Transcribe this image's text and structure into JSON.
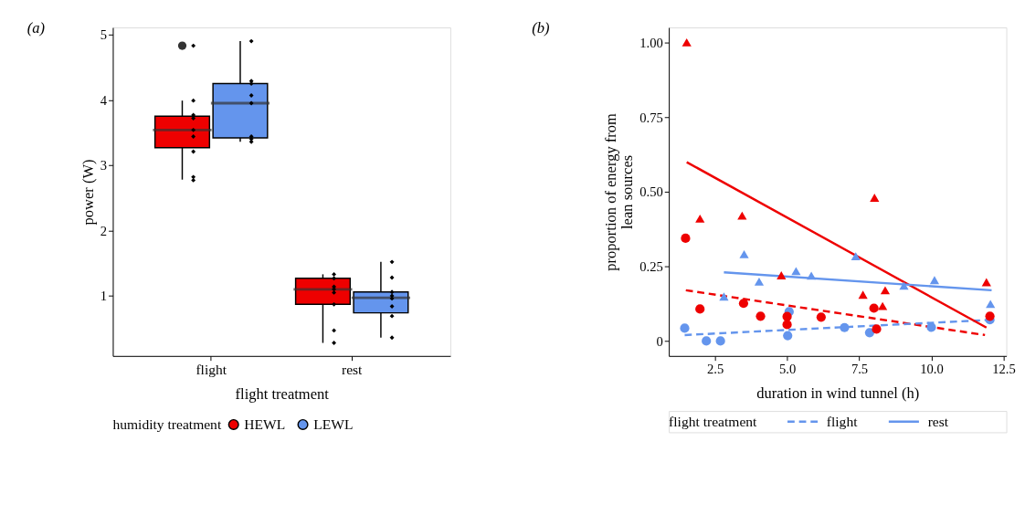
{
  "chart_data": [
    {
      "type": "box",
      "title": "(a)",
      "xlabel": "flight treatment",
      "ylabel": "power (W)",
      "categories": [
        "flight",
        "rest"
      ],
      "ylim": [
        0.08,
        5.11
      ],
      "yticks": [
        1,
        2,
        3,
        4,
        5
      ],
      "legend": "bottom",
      "legend_title": "humidity treatment",
      "grid": false,
      "series": [
        {
          "name": "HEWL",
          "color": "#ee0000",
          "boxes": [
            {
              "low": 2.78,
              "q1": 3.27,
              "median": 3.54,
              "q3": 3.75,
              "high": 3.99,
              "outliers": [
                4.83
              ]
            },
            {
              "low": 0.28,
              "q1": 0.87,
              "median": 1.1,
              "q3": 1.27,
              "high": 1.33
            }
          ]
        },
        {
          "name": "LEWL",
          "color": "#6495ed",
          "boxes": [
            {
              "low": 3.36,
              "q1": 3.42,
              "median": 3.95,
              "q3": 4.25,
              "high": 4.9
            },
            {
              "low": 0.36,
              "q1": 0.74,
              "median": 0.97,
              "q3": 1.06,
              "high": 1.52
            }
          ]
        },
        {
          "type": "scatter",
          "color": "#000000",
          "marker": "diamond",
          "x": [
            "flight",
            "flight",
            "flight",
            "flight",
            "flight",
            "flight",
            "flight",
            "flight",
            "flight",
            "rest",
            "rest",
            "rest",
            "rest",
            "rest",
            "rest",
            "rest",
            "rest"
          ],
          "values": [
            4.83,
            3.99,
            3.77,
            3.72,
            3.54,
            3.44,
            3.21,
            2.82,
            2.77,
            1.33,
            1.27,
            1.14,
            1.1,
            1.05,
            0.87,
            0.47,
            0.28
          ]
        },
        {
          "type": "scatter",
          "color": "#000000",
          "marker": "diamond",
          "x": [
            "flight",
            "flight",
            "flight",
            "flight",
            "flight",
            "flight",
            "flight",
            "flight",
            "rest",
            "rest",
            "rest",
            "rest",
            "rest",
            "rest",
            "rest",
            "rest"
          ],
          "values": [
            4.9,
            4.29,
            4.25,
            4.07,
            3.95,
            3.44,
            3.4,
            3.36,
            1.52,
            1.28,
            1.06,
            1.0,
            0.96,
            0.84,
            0.69,
            0.36
          ]
        }
      ]
    },
    {
      "type": "scatter",
      "title": "(b)",
      "xlabel": "duration in wind tunnel (h)",
      "ylabel": "proportion of energy from lean sources",
      "xlim": [
        0.9,
        12.6
      ],
      "xticks": [
        2.5,
        {
          "value": 5,
          "label": "5.0"
        },
        {
          "value": 7.5,
          "label": "7.5"
        },
        {
          "value": 10,
          "label": "10.0"
        },
        12.5
      ],
      "ylim": [
        -0.05,
        1.05
      ],
      "yticks": [
        0,
        0.25,
        {
          "value": 0.5,
          "label": "0.50"
        },
        {
          "value": 0.75,
          "label": "0.75"
        },
        {
          "value": 1,
          "label": "1.00"
        }
      ],
      "legend": "bottom",
      "legend_title": "flight treatment",
      "grid": false,
      "series": [
        {
          "color": "#6495ed",
          "marker": "circle",
          "x": [
            1.45,
            2.2,
            2.69,
            5.07,
            5.02,
            6.99,
            7.86,
            10.0,
            12.03
          ],
          "values": [
            0.043,
            0.0,
            0.0,
            0.098,
            0.018,
            0.045,
            0.028,
            0.046,
            0.071
          ]
        },
        {
          "color": "#ee0000",
          "marker": "circle",
          "x": [
            1.48,
            1.98,
            3.49,
            4.08,
            5.0,
            5.0,
            6.18,
            8.01,
            8.1,
            12.03
          ],
          "values": [
            0.344,
            0.107,
            0.126,
            0.083,
            0.082,
            0.055,
            0.08,
            0.11,
            0.04,
            0.083
          ]
        },
        {
          "color": "#ee0000",
          "marker": "triangle",
          "x": [
            1.52,
            1.98,
            3.44,
            8.03,
            4.8,
            7.63,
            8.4,
            8.31,
            11.91
          ],
          "values": [
            1.0,
            0.41,
            0.42,
            0.48,
            0.22,
            0.155,
            0.17,
            0.117,
            0.197
          ]
        },
        {
          "color": "#6495ed",
          "marker": "triangle",
          "x": [
            2.81,
            3.51,
            4.03,
            5.31,
            5.84,
            7.38,
            9.05,
            10.11,
            12.05
          ],
          "values": [
            0.149,
            0.291,
            0.199,
            0.234,
            0.219,
            0.284,
            0.185,
            0.204,
            0.124
          ]
        },
        {
          "type": "line",
          "color": "#ee0000",
          "line_style": "dashed",
          "x": [
            1.49,
            11.86
          ],
          "values": [
            0.17,
            0.02
          ]
        },
        {
          "type": "line",
          "name": "flight",
          "color": "#6495ed",
          "line_style": "dashed",
          "x": [
            1.45,
            12.09
          ],
          "values": [
            0.02,
            0.071
          ]
        },
        {
          "type": "line",
          "color": "#ee0000",
          "line_style": "solid",
          "x": [
            1.52,
            11.91
          ],
          "values": [
            0.599,
            0.045
          ]
        },
        {
          "type": "line",
          "name": "rest",
          "color": "#6495ed",
          "line_style": "solid",
          "x": [
            2.81,
            12.09
          ],
          "values": [
            0.23,
            0.17
          ]
        }
      ]
    }
  ]
}
